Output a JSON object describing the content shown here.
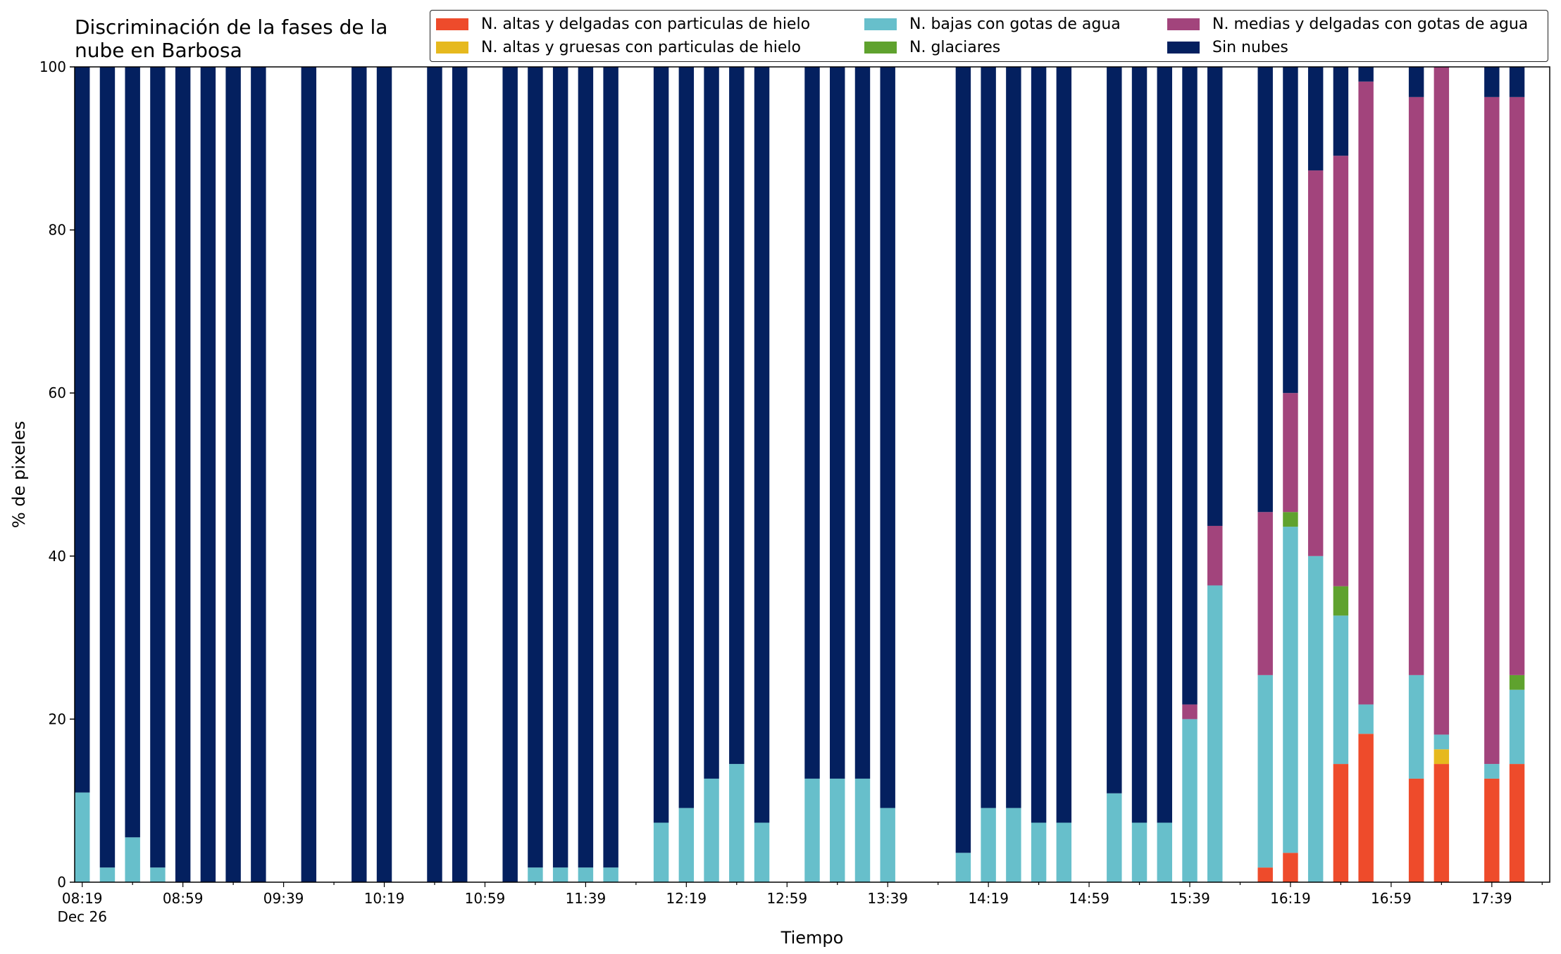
{
  "chart_data": {
    "type": "bar",
    "stacked": true,
    "title_lines": [
      "Discriminación de la fases de la",
      "nube en Barbosa"
    ],
    "xlabel": "Tiempo",
    "ylabel": "% de pixeles",
    "ylim": [
      0,
      100
    ],
    "yticks": [
      0,
      20,
      40,
      60,
      80,
      100
    ],
    "xtick_labels": [
      "08:19",
      "08:59",
      "09:39",
      "10:19",
      "10:59",
      "11:39",
      "12:19",
      "12:59",
      "13:39",
      "14:19",
      "14:59",
      "15:39",
      "16:19",
      "16:59",
      "17:39"
    ],
    "xtick_date_label": "Dec 26",
    "time_range": [
      "08:19",
      "17:59"
    ],
    "bar_minutes": 6,
    "legend_position": "top-right",
    "series": [
      {
        "name": "N. altas y delgadas con particulas de hielo",
        "color": "#ee4b2b"
      },
      {
        "name": "N. altas y gruesas con particulas de hielo",
        "color": "#e6b91e"
      },
      {
        "name": "N. bajas con gotas de agua",
        "color": "#67bfcb"
      },
      {
        "name": "N. glaciares",
        "color": "#5fa22e"
      },
      {
        "name": "N. medias y delgadas con gotas de agua",
        "color": "#a2447c"
      },
      {
        "name": "Sin nubes",
        "color": "#04205f"
      }
    ],
    "bars": [
      {
        "time": "08:19",
        "values": [
          0,
          0,
          11,
          0,
          0,
          89
        ]
      },
      {
        "time": "08:29",
        "values": [
          0,
          0,
          1.8,
          0,
          0,
          98.2
        ]
      },
      {
        "time": "08:39",
        "values": [
          0,
          0,
          5.5,
          0,
          0,
          94.5
        ]
      },
      {
        "time": "08:49",
        "values": [
          0,
          0,
          1.8,
          0,
          0,
          98.2
        ]
      },
      {
        "time": "08:59",
        "values": [
          0,
          0,
          0,
          0,
          0,
          100
        ]
      },
      {
        "time": "09:09",
        "values": [
          0,
          0,
          0,
          0,
          0,
          100
        ]
      },
      {
        "time": "09:19",
        "values": [
          0,
          0,
          0,
          0,
          0,
          100
        ]
      },
      {
        "time": "09:29",
        "values": [
          0,
          0,
          0,
          0,
          0,
          100
        ]
      },
      {
        "time": "09:49",
        "values": [
          0,
          0,
          0,
          0,
          0,
          100
        ]
      },
      {
        "time": "10:09",
        "values": [
          0,
          0,
          0,
          0,
          0,
          100
        ]
      },
      {
        "time": "10:19",
        "values": [
          0,
          0,
          0,
          0,
          0,
          100
        ]
      },
      {
        "time": "10:39",
        "values": [
          0,
          0,
          0,
          0,
          0,
          100
        ]
      },
      {
        "time": "10:49",
        "values": [
          0,
          0,
          0,
          0,
          0,
          100
        ]
      },
      {
        "time": "11:09",
        "values": [
          0,
          0,
          0,
          0,
          0,
          100
        ]
      },
      {
        "time": "11:19",
        "values": [
          0,
          0,
          1.8,
          0,
          0,
          98.2
        ]
      },
      {
        "time": "11:29",
        "values": [
          0,
          0,
          1.8,
          0,
          0,
          98.2
        ]
      },
      {
        "time": "11:39",
        "values": [
          0,
          0,
          1.8,
          0,
          0,
          98.2
        ]
      },
      {
        "time": "11:49",
        "values": [
          0,
          0,
          1.8,
          0,
          0,
          98.2
        ]
      },
      {
        "time": "12:09",
        "values": [
          0,
          0,
          7.3,
          0,
          0,
          92.7
        ]
      },
      {
        "time": "12:19",
        "values": [
          0,
          0,
          9.1,
          0,
          0,
          90.9
        ]
      },
      {
        "time": "12:29",
        "values": [
          0,
          0,
          12.7,
          0,
          0,
          87.3
        ]
      },
      {
        "time": "12:39",
        "values": [
          0,
          0,
          14.5,
          0,
          0,
          85.5
        ]
      },
      {
        "time": "12:49",
        "values": [
          0,
          0,
          7.3,
          0,
          0,
          92.7
        ]
      },
      {
        "time": "13:09",
        "values": [
          0,
          0,
          12.7,
          0,
          0,
          87.3
        ]
      },
      {
        "time": "13:19",
        "values": [
          0,
          0,
          12.7,
          0,
          0,
          87.3
        ]
      },
      {
        "time": "13:29",
        "values": [
          0,
          0,
          12.7,
          0,
          0,
          87.3
        ]
      },
      {
        "time": "13:39",
        "values": [
          0,
          0,
          9.1,
          0,
          0,
          90.9
        ]
      },
      {
        "time": "14:09",
        "values": [
          0,
          0,
          3.6,
          0,
          0,
          96.4
        ]
      },
      {
        "time": "14:19",
        "values": [
          0,
          0,
          9.1,
          0,
          0,
          90.9
        ]
      },
      {
        "time": "14:29",
        "values": [
          0,
          0,
          9.1,
          0,
          0,
          90.9
        ]
      },
      {
        "time": "14:39",
        "values": [
          0,
          0,
          7.3,
          0,
          0,
          92.7
        ]
      },
      {
        "time": "14:49",
        "values": [
          0,
          0,
          7.3,
          0,
          0,
          92.7
        ]
      },
      {
        "time": "15:09",
        "values": [
          0,
          0,
          10.9,
          0,
          0,
          89.1
        ]
      },
      {
        "time": "15:19",
        "values": [
          0,
          0,
          7.3,
          0,
          0,
          92.7
        ]
      },
      {
        "time": "15:29",
        "values": [
          0,
          0,
          7.3,
          0,
          0,
          92.7
        ]
      },
      {
        "time": "15:39",
        "values": [
          0,
          0,
          20,
          0,
          1.8,
          78.2
        ]
      },
      {
        "time": "15:49",
        "values": [
          0,
          0,
          36.4,
          0,
          7.3,
          56.3
        ]
      },
      {
        "time": "16:09",
        "values": [
          1.8,
          0,
          23.6,
          0,
          20,
          54.6
        ]
      },
      {
        "time": "16:19",
        "values": [
          3.6,
          0,
          40,
          1.8,
          14.6,
          40
        ]
      },
      {
        "time": "16:29",
        "values": [
          0,
          0,
          40,
          0,
          47.3,
          12.7
        ]
      },
      {
        "time": "16:39",
        "values": [
          14.5,
          0,
          18.2,
          3.6,
          52.8,
          10.9
        ]
      },
      {
        "time": "16:49",
        "values": [
          18.2,
          0,
          3.6,
          0,
          76.4,
          1.8
        ]
      },
      {
        "time": "17:09",
        "values": [
          12.7,
          0,
          12.7,
          0,
          70.9,
          3.7
        ]
      },
      {
        "time": "17:19",
        "values": [
          14.5,
          1.8,
          1.8,
          0,
          81.9,
          0
        ]
      },
      {
        "time": "17:39",
        "values": [
          12.7,
          0,
          1.8,
          0,
          81.8,
          3.7
        ]
      },
      {
        "time": "17:49",
        "values": [
          14.5,
          0,
          9.1,
          1.8,
          70.9,
          3.7
        ]
      }
    ]
  }
}
